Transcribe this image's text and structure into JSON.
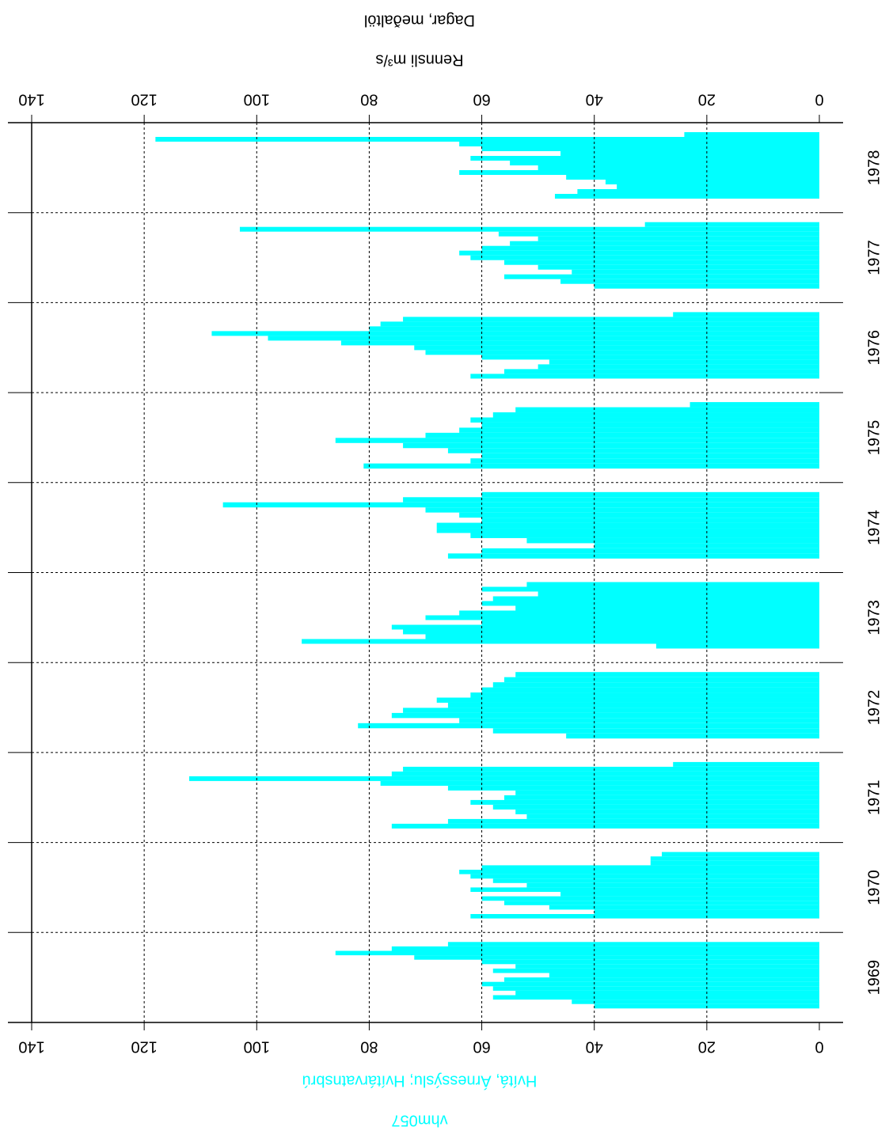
{
  "chart_data": {
    "type": "hbar",
    "title": "Dagar,  meðaltöl",
    "value_label": "Rennsli m³/s",
    "station": "Hvítá, Árnessýslu; Hvítárvatnsbrú",
    "station_id": "vhm057",
    "color": "#00ffff",
    "categories": [
      "1969",
      "1970",
      "1971",
      "1972",
      "1973",
      "1974",
      "1975",
      "1976",
      "1977",
      "1978"
    ],
    "values": [
      [
        66,
        76,
        86,
        72,
        60,
        54,
        58,
        48,
        56,
        60,
        58,
        54,
        58,
        44,
        40
      ],
      [
        28,
        30,
        30,
        60,
        64,
        62,
        58,
        52,
        62,
        46,
        60,
        56,
        48,
        40,
        62
      ],
      [
        26,
        74,
        76,
        112,
        78,
        66,
        54,
        56,
        62,
        58,
        54,
        52,
        66,
        76
      ],
      [
        54,
        56,
        58,
        60,
        62,
        68,
        66,
        74,
        76,
        64,
        82,
        58,
        45
      ],
      [
        52,
        60,
        50,
        58,
        60,
        54,
        64,
        70,
        60,
        76,
        74,
        70,
        92,
        29
      ],
      [
        60,
        74,
        106,
        70,
        64,
        60,
        68,
        68,
        62,
        52,
        40,
        60,
        66
      ],
      [
        23,
        54,
        58,
        62,
        60,
        64,
        70,
        86,
        74,
        66,
        60,
        62,
        81
      ],
      [
        26,
        74,
        78,
        80,
        108,
        98,
        85,
        72,
        70,
        60,
        48,
        50,
        56,
        62
      ],
      [
        31,
        103,
        57,
        50,
        55,
        60,
        64,
        62,
        56,
        50,
        44,
        56,
        46,
        40
      ],
      [
        24,
        118,
        64,
        60,
        46,
        62,
        55,
        50,
        64,
        45,
        38,
        36,
        43,
        47
      ]
    ],
    "xlim": [
      0,
      140
    ],
    "xticks": [
      0,
      20,
      40,
      60,
      80,
      100,
      120,
      140
    ],
    "grid": true
  }
}
